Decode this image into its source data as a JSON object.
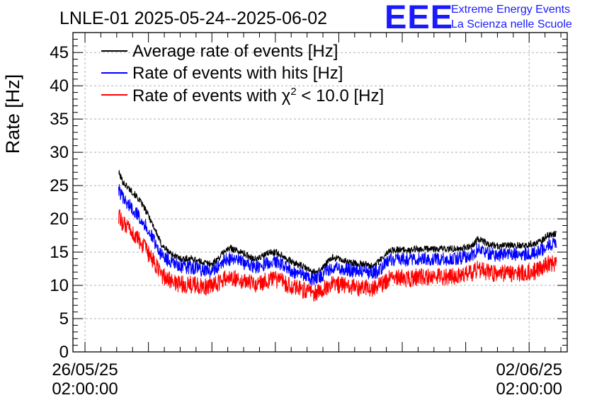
{
  "page_title": "LNLE-01 2025-05-24--2025-06-02",
  "logo": {
    "mark": "EEE",
    "line1": "Extreme Energy Events",
    "line2": "La Scienza nelle Scuole",
    "color": "#1a1aff"
  },
  "chart_data": {
    "type": "line",
    "title": "LNLE-01 2025-05-24--2025-06-02",
    "ylabel": "Rate [Hz]",
    "xlabel": "",
    "ylim": [
      0,
      48
    ],
    "xlim": [
      -0.19,
      7.6
    ],
    "y_ticks": [
      0,
      5,
      10,
      15,
      20,
      25,
      30,
      35,
      40,
      45
    ],
    "x_ticks": [
      {
        "value": 0,
        "line1": "26/05/25",
        "line2": "02:00:00"
      },
      {
        "value": 7,
        "line1": "02/06/25",
        "line2": "02:00:00"
      }
    ],
    "grid": true,
    "legend_position": "top-left",
    "x_unit": "days since 26/05/25 02:00:00",
    "series": [
      {
        "name": "Average rate of events [Hz]",
        "color": "#000000",
        "noise": 0.5,
        "x": [
          0.53,
          0.6,
          0.7,
          0.8,
          0.9,
          1.0,
          1.1,
          1.2,
          1.3,
          1.4,
          1.5,
          1.6,
          1.7,
          1.8,
          1.9,
          2.0,
          2.1,
          2.2,
          2.3,
          2.4,
          2.5,
          2.6,
          2.7,
          2.8,
          2.9,
          3.0,
          3.1,
          3.2,
          3.3,
          3.4,
          3.5,
          3.6,
          3.7,
          3.8,
          3.9,
          4.0,
          4.1,
          4.2,
          4.3,
          4.4,
          4.5,
          4.6,
          4.7,
          4.8,
          4.9,
          5.0,
          5.1,
          5.2,
          5.3,
          5.4,
          5.5,
          5.6,
          5.7,
          5.8,
          5.9,
          6.0,
          6.1,
          6.2,
          6.3,
          6.4,
          6.5,
          6.6,
          6.7,
          6.8,
          6.9,
          7.0,
          7.1,
          7.2,
          7.3,
          7.4,
          7.43
        ],
        "y": [
          27.0,
          25.5,
          24.5,
          23.5,
          22.2,
          20.5,
          18.5,
          16.2,
          15.2,
          14.5,
          14.0,
          14.0,
          14.0,
          13.6,
          13.4,
          13.2,
          14.0,
          15.2,
          15.6,
          15.2,
          14.8,
          14.3,
          13.9,
          14.4,
          14.9,
          15.0,
          14.6,
          13.9,
          13.3,
          13.0,
          12.5,
          12.0,
          12.2,
          13.2,
          14.2,
          14.0,
          13.6,
          13.4,
          13.3,
          13.2,
          13.0,
          13.3,
          14.2,
          15.2,
          15.4,
          15.3,
          15.2,
          15.5,
          15.4,
          15.5,
          15.5,
          15.5,
          15.5,
          15.5,
          15.6,
          15.7,
          16.0,
          17.0,
          16.5,
          16.1,
          15.9,
          16.0,
          16.0,
          16.0,
          16.1,
          16.2,
          16.3,
          16.7,
          17.6,
          17.8,
          17.6
        ]
      },
      {
        "name": "Rate of events with hits [Hz]",
        "color": "#0000ff",
        "noise": 1.0,
        "x": [
          0.53,
          0.6,
          0.7,
          0.8,
          0.9,
          1.0,
          1.1,
          1.2,
          1.3,
          1.4,
          1.5,
          1.6,
          1.7,
          1.8,
          1.9,
          2.0,
          2.1,
          2.2,
          2.3,
          2.4,
          2.5,
          2.6,
          2.7,
          2.8,
          2.9,
          3.0,
          3.1,
          3.2,
          3.3,
          3.4,
          3.5,
          3.6,
          3.7,
          3.8,
          3.9,
          4.0,
          4.1,
          4.2,
          4.3,
          4.4,
          4.5,
          4.6,
          4.7,
          4.8,
          4.9,
          5.0,
          5.1,
          5.2,
          5.3,
          5.4,
          5.5,
          5.6,
          5.7,
          5.8,
          5.9,
          6.0,
          6.1,
          6.2,
          6.3,
          6.4,
          6.5,
          6.6,
          6.7,
          6.8,
          6.9,
          7.0,
          7.1,
          7.2,
          7.3,
          7.4,
          7.43
        ],
        "y": [
          24.5,
          23.0,
          22.0,
          21.0,
          19.8,
          18.2,
          16.5,
          14.6,
          13.8,
          13.2,
          12.8,
          12.7,
          12.7,
          12.4,
          12.2,
          12.1,
          12.8,
          13.8,
          14.0,
          13.8,
          13.4,
          13.0,
          12.7,
          13.1,
          13.5,
          13.6,
          13.2,
          12.6,
          12.0,
          11.7,
          11.3,
          11.0,
          11.2,
          12.0,
          12.8,
          12.7,
          12.4,
          12.2,
          12.1,
          12.0,
          11.8,
          12.0,
          12.9,
          13.8,
          14.0,
          13.9,
          13.8,
          14.1,
          14.0,
          14.0,
          14.0,
          14.0,
          14.0,
          14.0,
          14.1,
          14.3,
          14.6,
          15.5,
          15.0,
          14.6,
          14.5,
          14.6,
          14.6,
          14.6,
          14.7,
          14.8,
          14.9,
          15.3,
          16.2,
          16.3,
          16.2
        ]
      },
      {
        "name": "Rate of events with χ² < 10.0 [Hz]",
        "legend_parts": [
          "Rate of events with ",
          "χ",
          "2",
          " < 10.0 [Hz]"
        ],
        "color": "#ff0000",
        "noise": 1.3,
        "x": [
          0.53,
          0.6,
          0.7,
          0.8,
          0.9,
          1.0,
          1.1,
          1.2,
          1.3,
          1.4,
          1.5,
          1.6,
          1.7,
          1.8,
          1.9,
          2.0,
          2.1,
          2.2,
          2.3,
          2.4,
          2.5,
          2.6,
          2.7,
          2.8,
          2.9,
          3.0,
          3.1,
          3.2,
          3.3,
          3.4,
          3.5,
          3.6,
          3.7,
          3.8,
          3.9,
          4.0,
          4.1,
          4.2,
          4.3,
          4.4,
          4.5,
          4.6,
          4.7,
          4.8,
          4.9,
          5.0,
          5.1,
          5.2,
          5.3,
          5.4,
          5.5,
          5.6,
          5.7,
          5.8,
          5.9,
          6.0,
          6.1,
          6.2,
          6.3,
          6.4,
          6.5,
          6.6,
          6.7,
          6.8,
          6.9,
          7.0,
          7.1,
          7.2,
          7.3,
          7.4,
          7.43
        ],
        "y": [
          20.5,
          19.2,
          18.3,
          17.3,
          16.2,
          14.7,
          13.2,
          11.6,
          11.0,
          10.5,
          10.2,
          10.1,
          10.1,
          9.9,
          9.8,
          9.8,
          10.3,
          11.0,
          11.2,
          11.0,
          10.7,
          10.4,
          10.2,
          10.5,
          10.8,
          10.9,
          10.6,
          10.1,
          9.6,
          9.4,
          9.2,
          8.9,
          9.0,
          9.6,
          10.2,
          10.1,
          9.9,
          9.8,
          9.7,
          9.6,
          9.5,
          9.7,
          10.3,
          11.0,
          11.1,
          11.1,
          11.0,
          11.2,
          11.2,
          11.2,
          11.2,
          11.3,
          11.3,
          11.3,
          11.4,
          11.6,
          11.9,
          12.5,
          12.1,
          11.8,
          11.7,
          11.8,
          11.8,
          11.8,
          11.9,
          12.0,
          12.1,
          12.5,
          13.2,
          13.4,
          13.3
        ]
      }
    ]
  }
}
